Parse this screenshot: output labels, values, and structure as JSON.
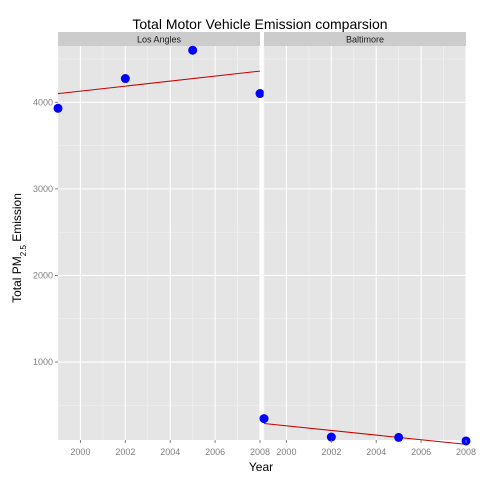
{
  "chart_data": {
    "type": "scatter",
    "title": "Total Motor Vehicle Emission comparsion",
    "xlabel": "Year",
    "ylabel_prefix": "Total PM",
    "ylabel_subscript": "2.5",
    "ylabel_suffix": " Emission",
    "ylim": [
      100,
      4650
    ],
    "xlim": [
      1999,
      2008
    ],
    "x_ticks": [
      "2000",
      "2002",
      "2004",
      "2006",
      "2008"
    ],
    "y_ticks": [
      "1000",
      "2000",
      "3000",
      "4000"
    ],
    "grid": true,
    "colors": {
      "points": "#0000ff",
      "trend": "#cc0000",
      "panel_bg": "#e5e5e5",
      "strip_bg": "#cccccc"
    },
    "panels": [
      {
        "name": "Los Angles",
        "x": [
          1999,
          2002,
          2005,
          2008
        ],
        "y": [
          3931,
          4274,
          4601,
          4101
        ],
        "trend": {
          "x": [
            1999,
            2008
          ],
          "y": [
            4100,
            4360
          ]
        }
      },
      {
        "name": "Baltimore",
        "x": [
          1999,
          2002,
          2005,
          2008
        ],
        "y": [
          347,
          134,
          130,
          89
        ],
        "trend": {
          "x": [
            1999,
            2008
          ],
          "y": [
            290,
            50
          ]
        }
      }
    ]
  }
}
